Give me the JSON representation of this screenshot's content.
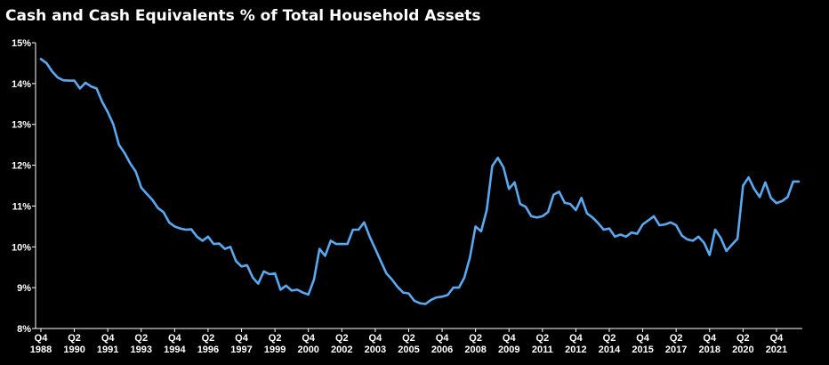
{
  "chart_data": {
    "type": "line",
    "title": "Cash and Cash Equivalents % of Total Household Assets",
    "xlabel": "",
    "ylabel": "",
    "ylim": [
      8,
      15
    ],
    "yticks": [
      "8%",
      "9%",
      "10%",
      "11%",
      "12%",
      "13%",
      "14%",
      "15%"
    ],
    "grid": false,
    "legend": "none",
    "line_color": "#5aa9f0",
    "x_tick_labels": [
      {
        "q": "Q4",
        "y": "1988"
      },
      {
        "q": "Q2",
        "y": "1990"
      },
      {
        "q": "Q4",
        "y": "1991"
      },
      {
        "q": "Q2",
        "y": "1993"
      },
      {
        "q": "Q4",
        "y": "1994"
      },
      {
        "q": "Q2",
        "y": "1996"
      },
      {
        "q": "Q4",
        "y": "1997"
      },
      {
        "q": "Q2",
        "y": "1999"
      },
      {
        "q": "Q4",
        "y": "2000"
      },
      {
        "q": "Q2",
        "y": "2002"
      },
      {
        "q": "Q4",
        "y": "2003"
      },
      {
        "q": "Q2",
        "y": "2005"
      },
      {
        "q": "Q4",
        "y": "2006"
      },
      {
        "q": "Q2",
        "y": "2008"
      },
      {
        "q": "Q4",
        "y": "2009"
      },
      {
        "q": "Q2",
        "y": "2011"
      },
      {
        "q": "Q4",
        "y": "2012"
      },
      {
        "q": "Q2",
        "y": "2014"
      },
      {
        "q": "Q4",
        "y": "2015"
      },
      {
        "q": "Q2",
        "y": "2017"
      },
      {
        "q": "Q4",
        "y": "2018"
      },
      {
        "q": "Q2",
        "y": "2020"
      },
      {
        "q": "Q4",
        "y": "2021"
      }
    ],
    "series": [
      {
        "first_period": "1988 Q4",
        "frequency": "quarterly",
        "values": [
          14.6,
          14.5,
          14.3,
          14.15,
          14.08,
          14.07,
          14.07,
          13.88,
          14.02,
          13.93,
          13.88,
          13.55,
          13.3,
          13.0,
          12.5,
          12.3,
          12.05,
          11.85,
          11.45,
          11.3,
          11.15,
          10.95,
          10.85,
          10.6,
          10.5,
          10.45,
          10.42,
          10.43,
          10.25,
          10.15,
          10.25,
          10.07,
          10.08,
          9.95,
          10.0,
          9.65,
          9.52,
          9.55,
          9.25,
          9.1,
          9.4,
          9.33,
          9.35,
          8.95,
          9.05,
          8.93,
          8.95,
          8.88,
          8.83,
          9.2,
          9.95,
          9.78,
          10.15,
          10.07,
          10.07,
          10.07,
          10.42,
          10.42,
          10.6,
          10.25,
          9.95,
          9.65,
          9.35,
          9.2,
          9.02,
          8.88,
          8.86,
          8.68,
          8.62,
          8.6,
          8.7,
          8.76,
          8.78,
          8.82,
          9.0,
          9.0,
          9.25,
          9.75,
          10.5,
          10.38,
          10.9,
          11.98,
          12.18,
          11.95,
          11.42,
          11.58,
          11.05,
          10.98,
          10.75,
          10.72,
          10.75,
          10.85,
          11.28,
          11.35,
          11.08,
          11.05,
          10.9,
          11.2,
          10.82,
          10.72,
          10.58,
          10.42,
          10.45,
          10.25,
          10.3,
          10.25,
          10.35,
          10.32,
          10.55,
          10.65,
          10.75,
          10.53,
          10.55,
          10.6,
          10.53,
          10.28,
          10.18,
          10.15,
          10.25,
          10.1,
          9.8,
          10.42,
          10.22,
          9.9,
          10.05,
          10.2,
          11.5,
          11.7,
          11.42,
          11.22,
          11.58,
          11.2,
          11.07,
          11.12,
          11.22,
          11.6,
          11.6
        ]
      }
    ]
  }
}
